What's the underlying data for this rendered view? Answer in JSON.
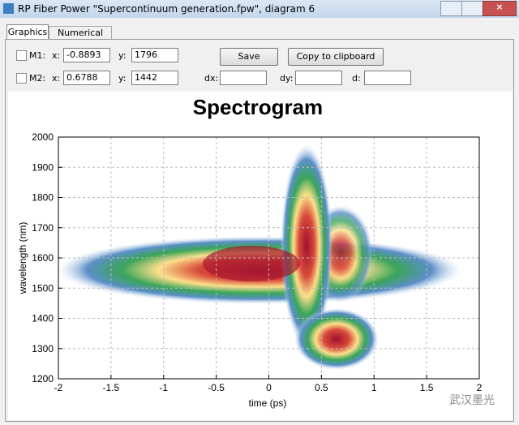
{
  "window": {
    "title": "RP Fiber Power \"Supercontinuum generation.fpw\", diagram 6"
  },
  "tabs": [
    "Graphics",
    "Numerical data"
  ],
  "markers": [
    {
      "name": "M1:",
      "x_label": "x:",
      "x": "-0.8893",
      "y_label": "y:",
      "y": "1796"
    },
    {
      "name": "M2:",
      "x_label": "x:",
      "x": "0.6788",
      "y_label": "y:",
      "y": "1442"
    }
  ],
  "buttons": {
    "save": "Save",
    "copy": "Copy to clipboard"
  },
  "deltas": {
    "dx_label": "dx:",
    "dy_label": "dy:",
    "d_label": "d:"
  },
  "chart": {
    "type": "heatmap",
    "title": "Spectrogram",
    "xlabel": "time (ps)",
    "ylabel": "wavelength (nm)",
    "xlim": [
      -2,
      2
    ],
    "xticks": [
      -2,
      -1.5,
      -1,
      -0.5,
      0,
      0.5,
      1,
      1.5,
      2
    ],
    "ylim": [
      1200,
      2000
    ],
    "yticks": [
      1200,
      1300,
      1400,
      1500,
      1600,
      1700,
      1800,
      1900,
      2000
    ],
    "grid": true
  },
  "watermark": "武汉墨光"
}
